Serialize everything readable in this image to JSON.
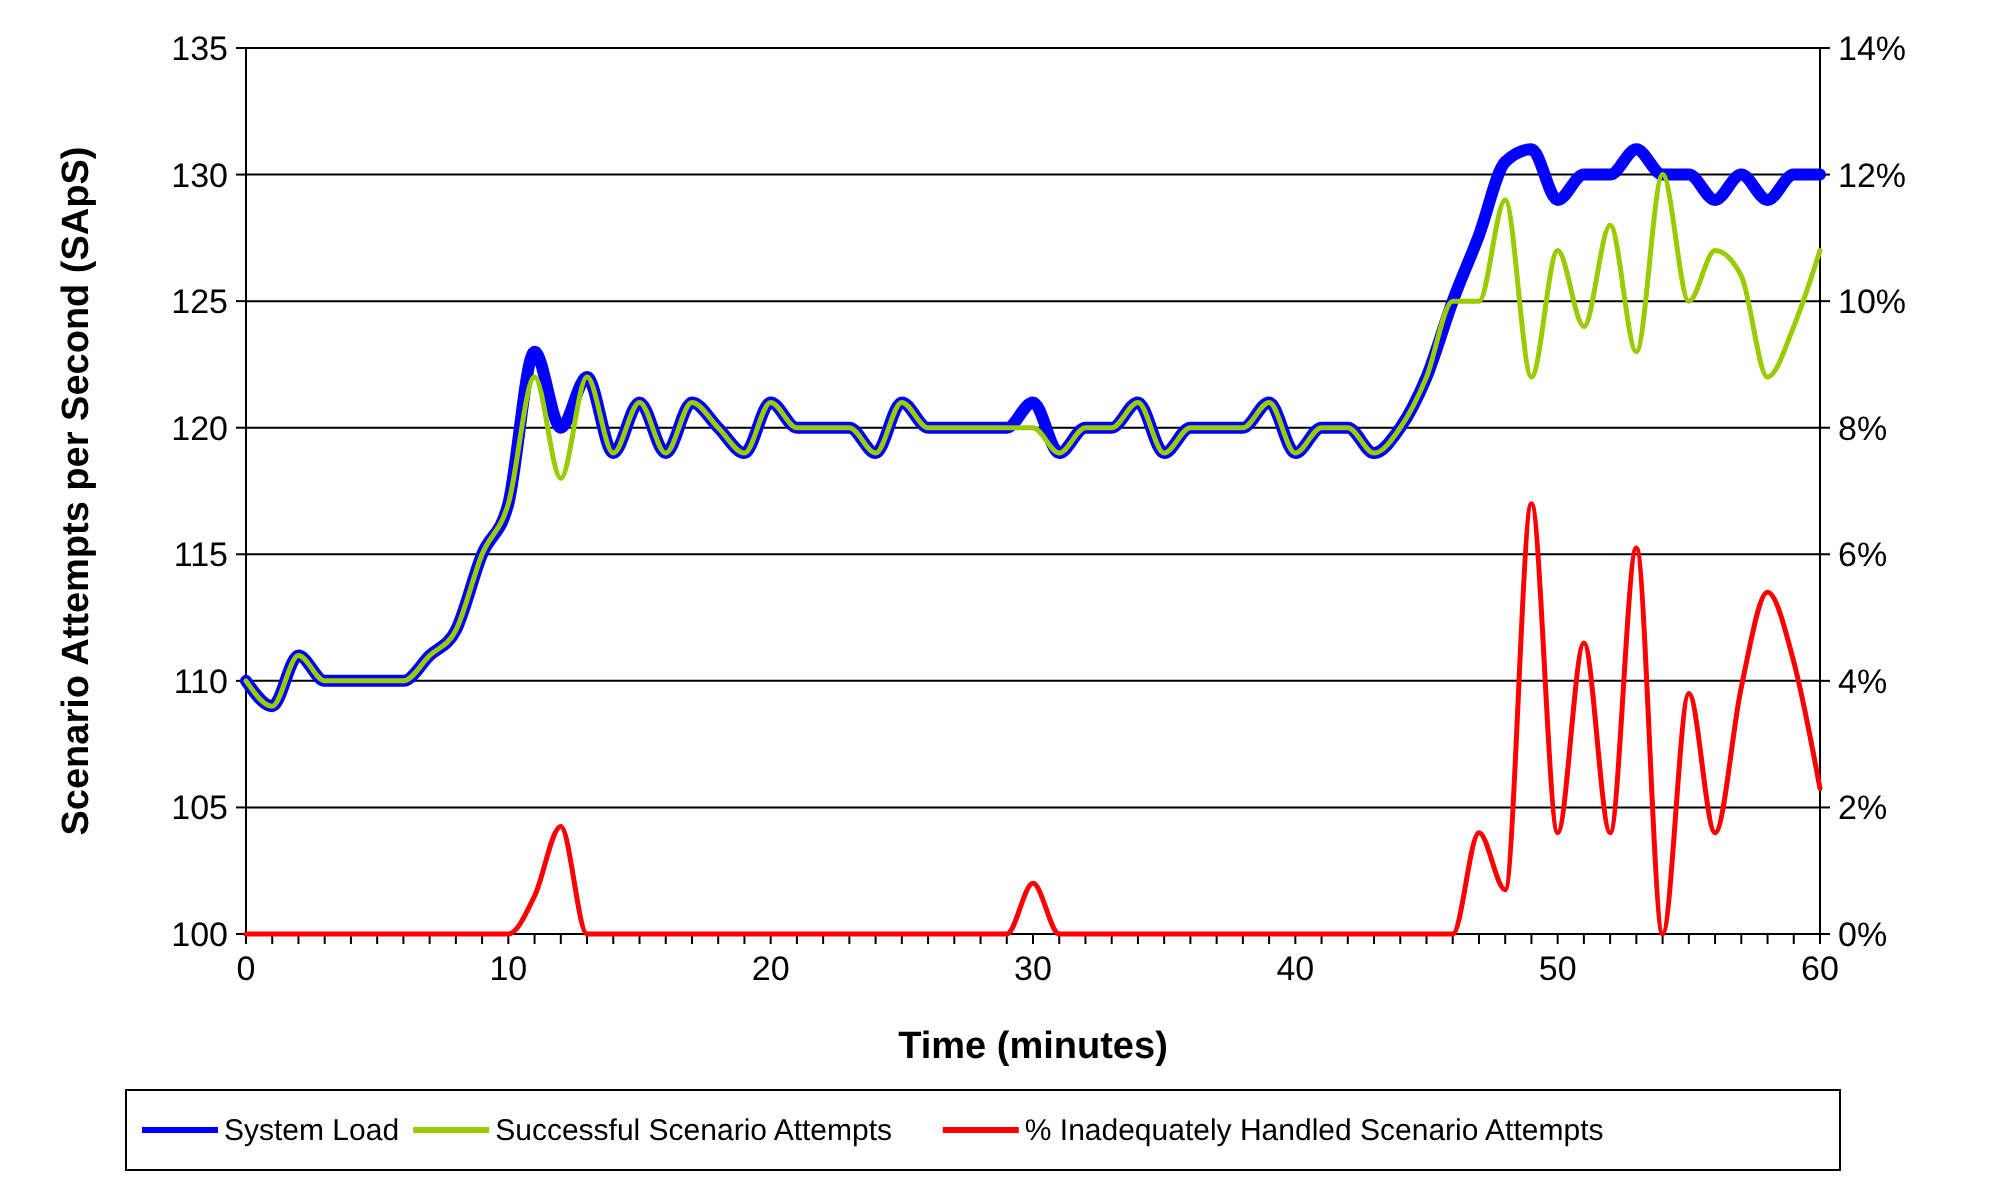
{
  "chart_data": {
    "type": "line",
    "xlabel": "Time (minutes)",
    "ylabel": "Scenario Attempts per Second (SApS)",
    "x": [
      0,
      1,
      2,
      3,
      4,
      5,
      6,
      7,
      8,
      9,
      10,
      11,
      12,
      13,
      14,
      15,
      16,
      17,
      18,
      19,
      20,
      21,
      22,
      23,
      24,
      25,
      26,
      27,
      28,
      29,
      30,
      31,
      32,
      33,
      34,
      35,
      36,
      37,
      38,
      39,
      40,
      41,
      42,
      43,
      44,
      45,
      46,
      47,
      48,
      49,
      50,
      51,
      52,
      53,
      54,
      55,
      56,
      57,
      58,
      59,
      60
    ],
    "xlim": [
      0,
      60
    ],
    "xticks": [
      0,
      {
        "value": 1,
        "label": null
      },
      {
        "value": 2,
        "label": null
      },
      {
        "value": 3,
        "label": null
      },
      {
        "value": 4,
        "label": null
      },
      {
        "value": 5,
        "label": null
      },
      {
        "value": 6,
        "label": null
      },
      {
        "value": 7,
        "label": null
      },
      {
        "value": 8,
        "label": null
      },
      {
        "value": 9,
        "label": null
      },
      10,
      {
        "value": 11,
        "label": null
      },
      {
        "value": 12,
        "label": null
      },
      {
        "value": 13,
        "label": null
      },
      {
        "value": 14,
        "label": null
      },
      {
        "value": 15,
        "label": null
      },
      {
        "value": 16,
        "label": null
      },
      {
        "value": 17,
        "label": null
      },
      {
        "value": 18,
        "label": null
      },
      {
        "value": 19,
        "label": null
      },
      20,
      {
        "value": 21,
        "label": null
      },
      {
        "value": 22,
        "label": null
      },
      {
        "value": 23,
        "label": null
      },
      {
        "value": 24,
        "label": null
      },
      {
        "value": 25,
        "label": null
      },
      {
        "value": 26,
        "label": null
      },
      {
        "value": 27,
        "label": null
      },
      {
        "value": 28,
        "label": null
      },
      {
        "value": 29,
        "label": null
      },
      30,
      {
        "value": 31,
        "label": null
      },
      {
        "value": 32,
        "label": null
      },
      {
        "value": 33,
        "label": null
      },
      {
        "value": 34,
        "label": null
      },
      {
        "value": 35,
        "label": null
      },
      {
        "value": 36,
        "label": null
      },
      {
        "value": 37,
        "label": null
      },
      {
        "value": 38,
        "label": null
      },
      {
        "value": 39,
        "label": null
      },
      40,
      {
        "value": 41,
        "label": null
      },
      {
        "value": 42,
        "label": null
      },
      {
        "value": 43,
        "label": null
      },
      {
        "value": 44,
        "label": null
      },
      {
        "value": 45,
        "label": null
      },
      {
        "value": 46,
        "label": null
      },
      {
        "value": 47,
        "label": null
      },
      {
        "value": 48,
        "label": null
      },
      {
        "value": 49,
        "label": null
      },
      50,
      {
        "value": 51,
        "label": null
      },
      {
        "value": 52,
        "label": null
      },
      {
        "value": 53,
        "label": null
      },
      {
        "value": 54,
        "label": null
      },
      {
        "value": 55,
        "label": null
      },
      {
        "value": 56,
        "label": null
      },
      {
        "value": 57,
        "label": null
      },
      {
        "value": 58,
        "label": null
      },
      {
        "value": 59,
        "label": null
      },
      60
    ],
    "ylim": [
      100,
      135
    ],
    "yticks": [
      100,
      105,
      110,
      115,
      120,
      125,
      130,
      135
    ],
    "y2lim": [
      0,
      14
    ],
    "y2ticks": [
      {
        "value": 0,
        "label": "0%"
      },
      {
        "value": 2,
        "label": "2%"
      },
      {
        "value": 4,
        "label": "4%"
      },
      {
        "value": 6,
        "label": "6%"
      },
      {
        "value": 8,
        "label": "8%"
      },
      {
        "value": 10,
        "label": "10%"
      },
      {
        "value": 12,
        "label": "12%"
      },
      {
        "value": 14,
        "label": "14%"
      }
    ],
    "grid": "y",
    "legend": "bottom",
    "marker": "none",
    "line_style": "solid",
    "series": [
      {
        "name": "System Load",
        "color": "#0000ff",
        "values": [
          110,
          109,
          111,
          110,
          110,
          110,
          110,
          111,
          112,
          115,
          117,
          123,
          120,
          122,
          119,
          121,
          119,
          121,
          120,
          119,
          121,
          120,
          120,
          120,
          119,
          121,
          120,
          120,
          120,
          120,
          121,
          119,
          120,
          120,
          121,
          119,
          120,
          120,
          120,
          121,
          119,
          120,
          120,
          119,
          120,
          122,
          125,
          127.6,
          130.5,
          131,
          129,
          130,
          130,
          131,
          130,
          130,
          129,
          130,
          129,
          130,
          130
        ]
      },
      {
        "name": "Successful Scenario Attempts",
        "color": "#99cc00",
        "values": [
          110,
          109,
          111,
          110,
          110,
          110,
          110,
          111,
          112,
          115,
          117,
          122,
          118,
          122,
          119,
          121,
          119,
          121,
          120,
          119,
          121,
          120,
          120,
          120,
          119,
          121,
          120,
          120,
          120,
          120,
          120,
          119,
          120,
          120,
          121,
          119,
          120,
          120,
          120,
          121,
          119,
          120,
          120,
          119,
          120,
          122,
          125,
          125,
          129,
          122,
          127,
          124,
          128,
          123,
          130,
          125,
          127,
          126,
          122,
          124,
          127
        ]
      },
      {
        "name": "% Inadequately Handled Scenario Attempts",
        "color": "#ff0000",
        "axis": "y2",
        "values": [
          0,
          0,
          0,
          0,
          0,
          0,
          0,
          0,
          0,
          0,
          0,
          0.6,
          1.7,
          0,
          0,
          0,
          0,
          0,
          0,
          0,
          0,
          0,
          0,
          0,
          0,
          0,
          0,
          0,
          0,
          0,
          0.8,
          0,
          0,
          0,
          0,
          0,
          0,
          0,
          0,
          0,
          0,
          0,
          0,
          0,
          0,
          0,
          0,
          1.6,
          0.7,
          6.8,
          1.6,
          4.6,
          1.6,
          6.1,
          0,
          3.8,
          1.6,
          3.9,
          5.4,
          4.3,
          2.3
        ]
      }
    ]
  }
}
